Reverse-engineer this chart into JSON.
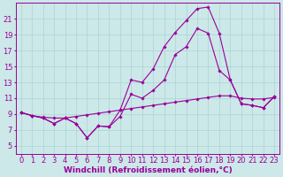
{
  "xlabel": "Windchill (Refroidissement éolien,°C)",
  "bg_color": "#cce8e8",
  "line_color": "#990099",
  "grid_color": "#aad4d4",
  "xmin": -0.5,
  "xmax": 23.5,
  "ymin": 4,
  "ymax": 23,
  "yticks": [
    5,
    7,
    9,
    11,
    13,
    15,
    17,
    19,
    21
  ],
  "xticks": [
    0,
    1,
    2,
    3,
    4,
    5,
    6,
    7,
    8,
    9,
    10,
    11,
    12,
    13,
    14,
    15,
    16,
    17,
    18,
    19,
    20,
    21,
    22,
    23
  ],
  "line1_x": [
    0,
    1,
    2,
    3,
    4,
    5,
    6,
    7,
    8,
    9,
    10,
    11,
    12,
    13,
    14,
    15,
    16,
    17,
    18,
    19,
    20,
    21,
    22,
    23
  ],
  "line1_y": [
    9.2,
    8.8,
    8.6,
    8.5,
    8.5,
    8.7,
    8.9,
    9.1,
    9.3,
    9.5,
    9.7,
    9.9,
    10.1,
    10.3,
    10.5,
    10.7,
    10.9,
    11.1,
    11.3,
    11.3,
    11.0,
    10.9,
    10.9,
    11.1
  ],
  "line2_x": [
    0,
    1,
    2,
    3,
    4,
    5,
    6,
    7,
    8,
    9,
    10,
    11,
    12,
    13,
    14,
    15,
    16,
    17,
    18,
    19,
    20,
    21,
    22,
    23
  ],
  "line2_y": [
    9.2,
    8.8,
    8.5,
    7.8,
    8.5,
    7.8,
    6.0,
    7.5,
    7.4,
    8.7,
    11.5,
    11.0,
    12.0,
    13.3,
    16.5,
    17.5,
    19.8,
    19.2,
    14.5,
    13.3,
    10.3,
    10.1,
    9.8,
    11.2
  ],
  "line3_x": [
    0,
    1,
    2,
    3,
    4,
    5,
    6,
    7,
    8,
    9,
    10,
    11,
    12,
    13,
    14,
    15,
    16,
    17,
    18,
    19,
    20,
    21,
    22,
    23
  ],
  "line3_y": [
    9.2,
    8.8,
    8.5,
    7.8,
    8.5,
    7.8,
    6.0,
    7.5,
    7.4,
    9.5,
    13.3,
    13.0,
    14.7,
    17.5,
    19.3,
    20.8,
    22.3,
    22.5,
    19.2,
    13.3,
    10.3,
    10.1,
    9.8,
    11.2
  ],
  "xlabel_fontsize": 6.5,
  "tick_fontsize": 6.0
}
